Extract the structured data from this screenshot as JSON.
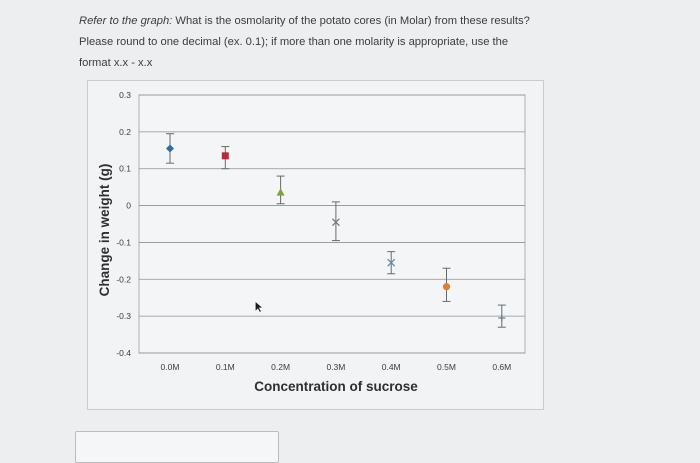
{
  "question": {
    "prefix": "Refer to the graph:",
    "text": " What is the osmolarity of the potato cores (in Molar) from these results? Please round to one decimal (ex. 0.1); if more than one molarity is appropriate, use the format x.x - x.x"
  },
  "chart_data": {
    "type": "scatter",
    "title": "",
    "xlabel": "Concentration of sucrose",
    "ylabel": "Change in weight (g)",
    "categories": [
      "0.0M",
      "0.1M",
      "0.2M",
      "0.3M",
      "0.4M",
      "0.5M",
      "0.6M"
    ],
    "ylim": [
      -0.4,
      0.3
    ],
    "yticks": [
      "0.3",
      "0.2",
      "0.1",
      "0",
      "-0.1",
      "-0.2",
      "-0.3",
      "-0.4"
    ],
    "ytick_values": [
      0.3,
      0.2,
      0.1,
      0,
      -0.1,
      -0.2,
      -0.3,
      -0.4
    ],
    "grid": true,
    "series": [
      {
        "name": "0.0M",
        "value": 0.155,
        "err_low": 0.115,
        "err_high": 0.195,
        "marker": "diamond",
        "color": "#2a6ea8"
      },
      {
        "name": "0.1M",
        "value": 0.135,
        "err_low": 0.1,
        "err_high": 0.16,
        "marker": "square",
        "color": "#b62a3a"
      },
      {
        "name": "0.2M",
        "value": 0.035,
        "err_low": 0.005,
        "err_high": 0.08,
        "marker": "triangle",
        "color": "#7ca43c"
      },
      {
        "name": "0.3M",
        "value": -0.045,
        "err_low": -0.095,
        "err_high": 0.01,
        "marker": "x",
        "color": "#6c7c8c"
      },
      {
        "name": "0.4M",
        "value": -0.155,
        "err_low": -0.185,
        "err_high": -0.125,
        "marker": "x",
        "color": "#5f8ab4"
      },
      {
        "name": "0.5M",
        "value": -0.22,
        "err_low": -0.26,
        "err_high": -0.17,
        "marker": "circle",
        "color": "#e07f2c"
      },
      {
        "name": "0.6M",
        "value": -0.305,
        "err_low": -0.33,
        "err_high": -0.27,
        "marker": "plus",
        "color": "#6c7c8c"
      }
    ],
    "annotation": {
      "label": "cursor",
      "x": "0.1M",
      "y": -0.26
    }
  },
  "answer": {
    "value": ""
  }
}
